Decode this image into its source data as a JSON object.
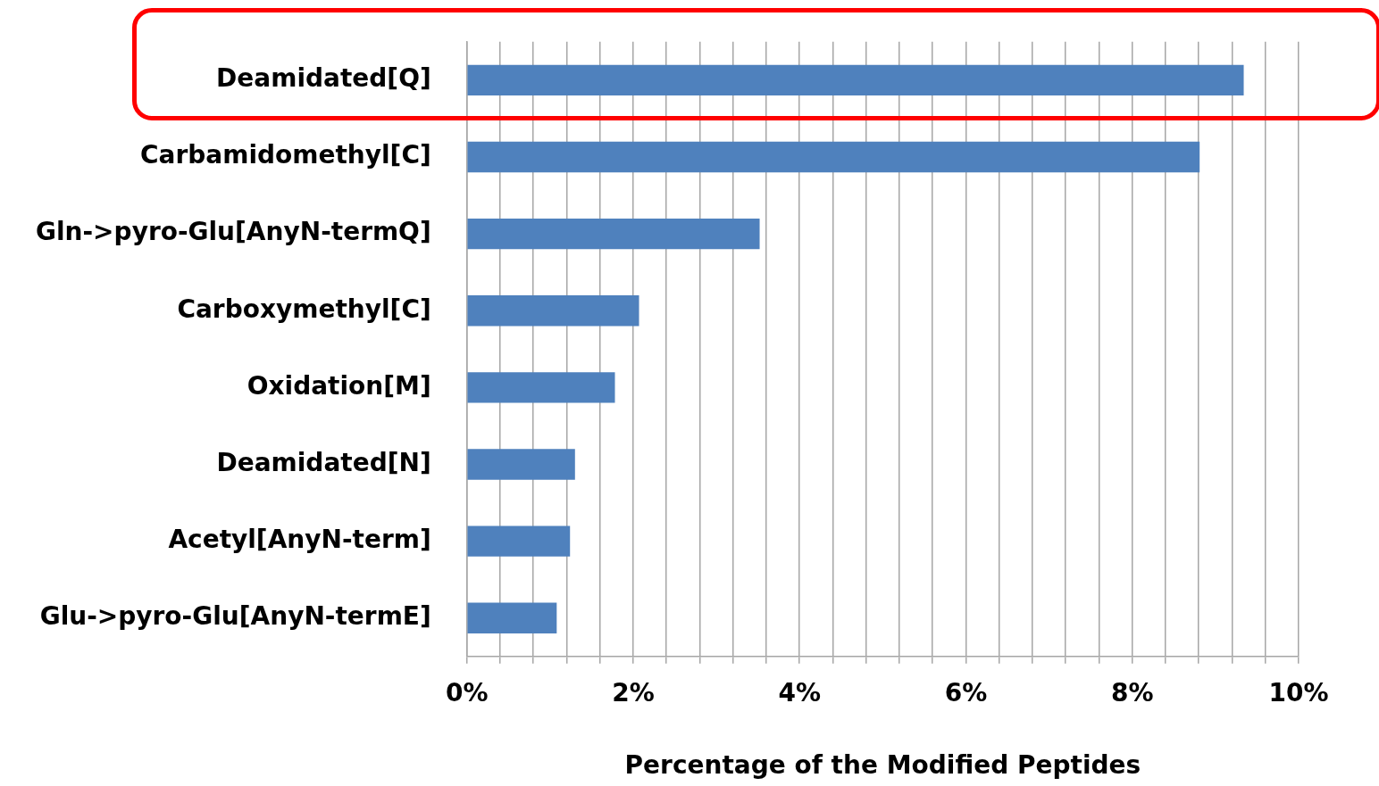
{
  "chart_data": {
    "type": "bar",
    "orientation": "horizontal",
    "xlabel": "Percentage of the Modified Peptides",
    "categories": [
      "Deamidated[Q]",
      "Carbamidomethyl[C]",
      "Gln->pyro-Glu[AnyN-termQ]",
      "Carboxymethyl[C]",
      "Oxidation[M]",
      "Deamidated[N]",
      "Acetyl[AnyN-term]",
      "Glu->pyro-Glu[AnyN-termE]"
    ],
    "values": [
      9.34,
      8.81,
      3.52,
      2.07,
      1.78,
      1.3,
      1.24,
      1.08
    ],
    "color": "#4f81bd",
    "xlim": [
      0,
      10
    ],
    "xticks": [
      {
        "value": 0,
        "label": "0%"
      },
      {
        "value": 0.4,
        "label": null
      },
      {
        "value": 0.8,
        "label": null
      },
      {
        "value": 1.2,
        "label": null
      },
      {
        "value": 1.6,
        "label": null
      },
      {
        "value": 2,
        "label": "2%"
      },
      {
        "value": 2.4,
        "label": null
      },
      {
        "value": 2.8,
        "label": null
      },
      {
        "value": 3.2,
        "label": null
      },
      {
        "value": 3.6,
        "label": null
      },
      {
        "value": 4,
        "label": "4%"
      },
      {
        "value": 4.4,
        "label": null
      },
      {
        "value": 4.8,
        "label": null
      },
      {
        "value": 5.2,
        "label": null
      },
      {
        "value": 5.6,
        "label": null
      },
      {
        "value": 6,
        "label": "6%"
      },
      {
        "value": 6.4,
        "label": null
      },
      {
        "value": 6.8,
        "label": null
      },
      {
        "value": 7.2,
        "label": null
      },
      {
        "value": 7.6,
        "label": null
      },
      {
        "value": 8,
        "label": "8%"
      },
      {
        "value": 8.4,
        "label": null
      },
      {
        "value": 8.8,
        "label": null
      },
      {
        "value": 9.2,
        "label": null
      },
      {
        "value": 9.6,
        "label": null
      },
      {
        "value": 10,
        "label": "10%"
      }
    ],
    "grid": "x",
    "legend": false
  }
}
